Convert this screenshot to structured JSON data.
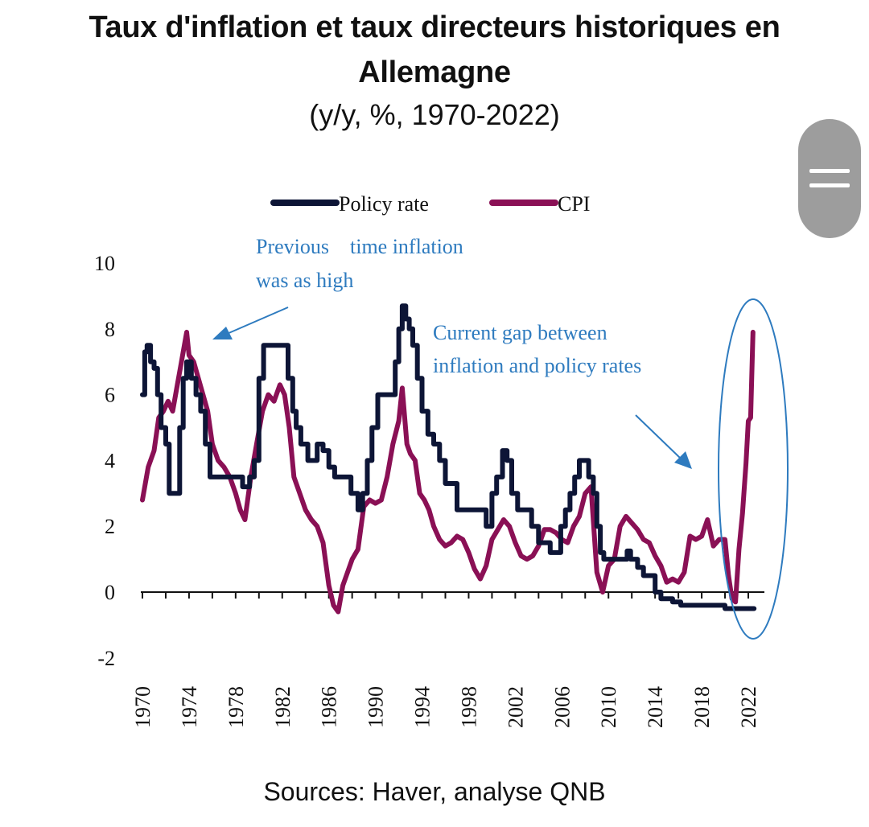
{
  "title": "Taux d'inflation et taux directeurs historiques en Allemagne",
  "subtitle": "(y/y, %, 1970-2022)",
  "source": "Sources: Haver, analyse QNB",
  "colors": {
    "policy_rate": "#0d1536",
    "cpi": "#8a1055",
    "annotation": "#2e7bbf",
    "axis": "#111111"
  },
  "chart_data": {
    "type": "line",
    "title": "Taux d'inflation et taux directeurs historiques en Allemagne",
    "subtitle": "(y/y, %, 1970-2022)",
    "xlabel": "",
    "ylabel": "",
    "xlim": [
      1970,
      2022.8
    ],
    "ylim": [
      -2,
      10
    ],
    "y_ticks": [
      -2,
      0,
      2,
      4,
      6,
      8,
      10
    ],
    "x_ticks": [
      1970,
      1974,
      1978,
      1982,
      1986,
      1990,
      1994,
      1998,
      2002,
      2006,
      2010,
      2014,
      2018,
      2022
    ],
    "grid": false,
    "legend": "top-center",
    "series": [
      {
        "name": "Policy rate",
        "x": [
          1970.0,
          1970.2,
          1970.4,
          1970.7,
          1971.0,
          1971.3,
          1971.6,
          1972.0,
          1972.3,
          1972.6,
          1972.9,
          1973.2,
          1973.5,
          1973.8,
          1974.2,
          1974.6,
          1975.0,
          1975.4,
          1975.8,
          1976.5,
          1977.2,
          1977.8,
          1978.6,
          1979.2,
          1979.6,
          1980.0,
          1980.4,
          1981.0,
          1981.6,
          1982.1,
          1982.5,
          1982.9,
          1983.2,
          1983.6,
          1984.2,
          1985.0,
          1985.5,
          1986.0,
          1986.5,
          1987.2,
          1987.9,
          1988.5,
          1988.9,
          1989.3,
          1989.7,
          1990.2,
          1990.8,
          1991.3,
          1991.7,
          1992.0,
          1992.3,
          1992.6,
          1992.9,
          1993.2,
          1993.6,
          1994.0,
          1994.5,
          1995.0,
          1995.5,
          1996.0,
          1997.0,
          1998.0,
          1999.0,
          1999.5,
          2000.0,
          2000.4,
          2000.9,
          2001.3,
          2001.7,
          2002.2,
          2002.8,
          2003.4,
          2004.0,
          2005.0,
          2005.9,
          2006.3,
          2006.7,
          2007.1,
          2007.5,
          2007.9,
          2008.3,
          2008.7,
          2009.0,
          2009.3,
          2009.6,
          2010.5,
          2011.2,
          2011.6,
          2011.9,
          2012.5,
          2013.0,
          2013.5,
          2014.0,
          2014.5,
          2015.0,
          2015.5,
          2016.2,
          2017.0,
          2018.0,
          2019.0,
          2020.0,
          2021.0,
          2022.0,
          2022.5
        ],
        "values": [
          6.0,
          7.3,
          7.5,
          7.0,
          6.8,
          6.0,
          5.0,
          4.5,
          3.0,
          3.0,
          3.0,
          5.0,
          6.5,
          7.0,
          6.5,
          6.0,
          5.5,
          4.5,
          3.5,
          3.5,
          3.5,
          3.5,
          3.2,
          3.5,
          4.0,
          6.5,
          7.5,
          7.5,
          7.5,
          7.5,
          6.5,
          5.5,
          5.0,
          4.5,
          4.0,
          4.5,
          4.3,
          3.8,
          3.5,
          3.5,
          3.0,
          2.5,
          3.0,
          4.0,
          5.0,
          6.0,
          6.0,
          6.0,
          7.0,
          8.0,
          8.7,
          8.3,
          8.0,
          7.5,
          6.5,
          5.5,
          4.8,
          4.5,
          4.0,
          3.3,
          2.5,
          2.5,
          2.5,
          2.0,
          3.0,
          3.5,
          4.3,
          4.0,
          3.0,
          2.5,
          2.5,
          2.0,
          1.5,
          1.2,
          2.0,
          2.5,
          3.0,
          3.5,
          4.0,
          4.0,
          3.5,
          3.0,
          2.0,
          1.2,
          1.0,
          1.0,
          1.0,
          1.25,
          1.0,
          0.75,
          0.5,
          0.5,
          0.0,
          -0.2,
          -0.2,
          -0.3,
          -0.4,
          -0.4,
          -0.4,
          -0.4,
          -0.5,
          -0.5,
          -0.5,
          -0.5
        ]
      },
      {
        "name": "CPI",
        "x": [
          1970.0,
          1970.5,
          1971.0,
          1971.4,
          1971.8,
          1972.2,
          1972.6,
          1973.0,
          1973.3,
          1973.6,
          1973.8,
          1974.0,
          1974.4,
          1974.8,
          1975.2,
          1975.6,
          1976.0,
          1976.5,
          1977.0,
          1977.5,
          1978.0,
          1978.4,
          1978.8,
          1979.3,
          1979.8,
          1980.3,
          1980.8,
          1981.3,
          1981.8,
          1982.2,
          1982.6,
          1983.0,
          1983.5,
          1984.0,
          1984.5,
          1985.0,
          1985.5,
          1986.0,
          1986.4,
          1986.8,
          1987.2,
          1987.6,
          1988.0,
          1988.5,
          1989.0,
          1989.5,
          1990.0,
          1990.5,
          1991.0,
          1991.5,
          1992.0,
          1992.3,
          1992.7,
          1993.0,
          1993.4,
          1993.8,
          1994.2,
          1994.6,
          1995.0,
          1995.5,
          1996.0,
          1996.5,
          1997.0,
          1997.5,
          1998.0,
          1998.5,
          1999.0,
          1999.5,
          2000.0,
          2000.5,
          2001.0,
          2001.5,
          2002.0,
          2002.5,
          2003.0,
          2003.5,
          2004.0,
          2004.5,
          2005.0,
          2005.5,
          2006.0,
          2006.5,
          2007.0,
          2007.5,
          2008.0,
          2008.5,
          2009.0,
          2009.5,
          2010.0,
          2010.5,
          2011.0,
          2011.5,
          2012.0,
          2012.5,
          2013.0,
          2013.5,
          2014.0,
          2014.5,
          2015.0,
          2015.5,
          2016.0,
          2016.5,
          2017.0,
          2017.5,
          2018.0,
          2018.5,
          2019.0,
          2019.5,
          2020.0,
          2020.3,
          2020.6,
          2020.9,
          2021.2,
          2021.5,
          2021.8,
          2022.0,
          2022.2,
          2022.4
        ],
        "values": [
          2.8,
          3.8,
          4.3,
          5.3,
          5.5,
          5.8,
          5.5,
          6.3,
          6.9,
          7.5,
          7.9,
          7.2,
          7.0,
          6.5,
          6.0,
          5.5,
          4.5,
          4.0,
          3.8,
          3.5,
          3.0,
          2.5,
          2.2,
          3.5,
          4.5,
          5.5,
          6.0,
          5.8,
          6.3,
          6.0,
          5.0,
          3.5,
          3.0,
          2.5,
          2.2,
          2.0,
          1.5,
          0.2,
          -0.4,
          -0.6,
          0.2,
          0.6,
          1.0,
          1.3,
          2.6,
          2.8,
          2.7,
          2.8,
          3.5,
          4.5,
          5.2,
          6.2,
          4.5,
          4.2,
          4.0,
          3.0,
          2.8,
          2.5,
          2.0,
          1.6,
          1.4,
          1.5,
          1.7,
          1.6,
          1.2,
          0.7,
          0.4,
          0.8,
          1.6,
          1.9,
          2.2,
          2.0,
          1.5,
          1.1,
          1.0,
          1.1,
          1.4,
          1.9,
          1.9,
          1.8,
          1.6,
          1.5,
          2.0,
          2.3,
          3.0,
          3.2,
          0.6,
          0.0,
          0.8,
          1.0,
          2.0,
          2.3,
          2.1,
          1.9,
          1.6,
          1.5,
          1.1,
          0.8,
          0.3,
          0.4,
          0.3,
          0.6,
          1.7,
          1.6,
          1.7,
          2.2,
          1.4,
          1.6,
          1.6,
          0.5,
          -0.2,
          -0.3,
          1.3,
          2.4,
          3.9,
          5.2,
          5.3,
          7.9
        ]
      }
    ],
    "annotations": [
      {
        "text_lines": [
          "Previous    time inflation",
          "was as high"
        ],
        "arrow_to": [
          1976.0,
          7.9
        ]
      },
      {
        "text_lines": [
          "Current gap between",
          "inflation and policy rates"
        ],
        "arrow_to": [
          2016.3,
          3.9
        ]
      }
    ]
  }
}
